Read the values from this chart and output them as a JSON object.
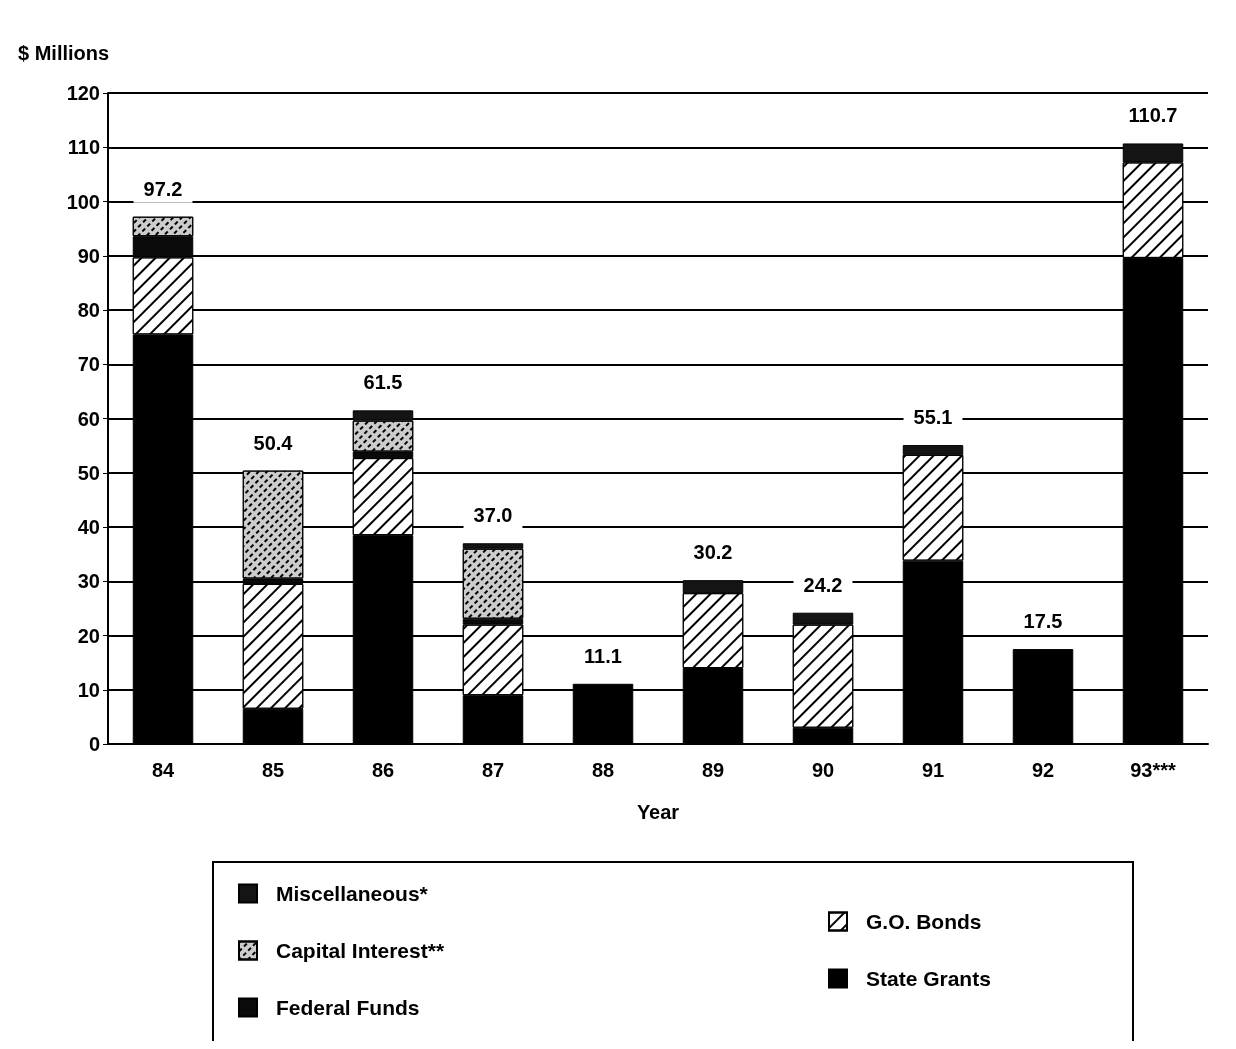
{
  "chart_data": {
    "type": "bar",
    "stacked": true,
    "ylabel": "$ Millions",
    "xlabel": "Year",
    "categories": [
      "84",
      "85",
      "86",
      "87",
      "88",
      "89",
      "90",
      "91",
      "92",
      "93***"
    ],
    "series": [
      {
        "name": "State Grants",
        "color": "#000000",
        "values": [
          75.5,
          6.5,
          38.5,
          9.0,
          11.1,
          14.0,
          3.0,
          33.8,
          17.5,
          89.6
        ]
      },
      {
        "name": "G.O. Bonds",
        "color": "#ffffff",
        "values": [
          14.2,
          23.0,
          14.2,
          13.0,
          null,
          13.8,
          19.0,
          19.5,
          null,
          17.6
        ]
      },
      {
        "name": "Federal Funds",
        "color": "#0a0a0a",
        "values": [
          3.9,
          1.0,
          1.2,
          1.1,
          null,
          null,
          null,
          null,
          null,
          null
        ]
      },
      {
        "name": "Capital Interest**",
        "color": "#cccccc",
        "values": [
          3.6,
          19.9,
          5.7,
          12.9,
          null,
          null,
          null,
          null,
          null,
          null
        ]
      },
      {
        "name": "Miscellaneous*",
        "color": "#141414",
        "values": [
          null,
          null,
          1.9,
          1.0,
          null,
          2.4,
          2.2,
          1.8,
          null,
          3.5
        ]
      }
    ],
    "totals": [
      "97.2",
      "50.4",
      "61.5",
      "37.0",
      "11.1",
      "30.2",
      "24.2",
      "55.1",
      "17.5",
      "110.7"
    ],
    "ylim": [
      0,
      120
    ],
    "yticks": [
      0,
      10,
      20,
      30,
      40,
      50,
      60,
      70,
      80,
      90,
      100,
      110,
      120
    ],
    "grid": "y",
    "legend": "bottom"
  }
}
